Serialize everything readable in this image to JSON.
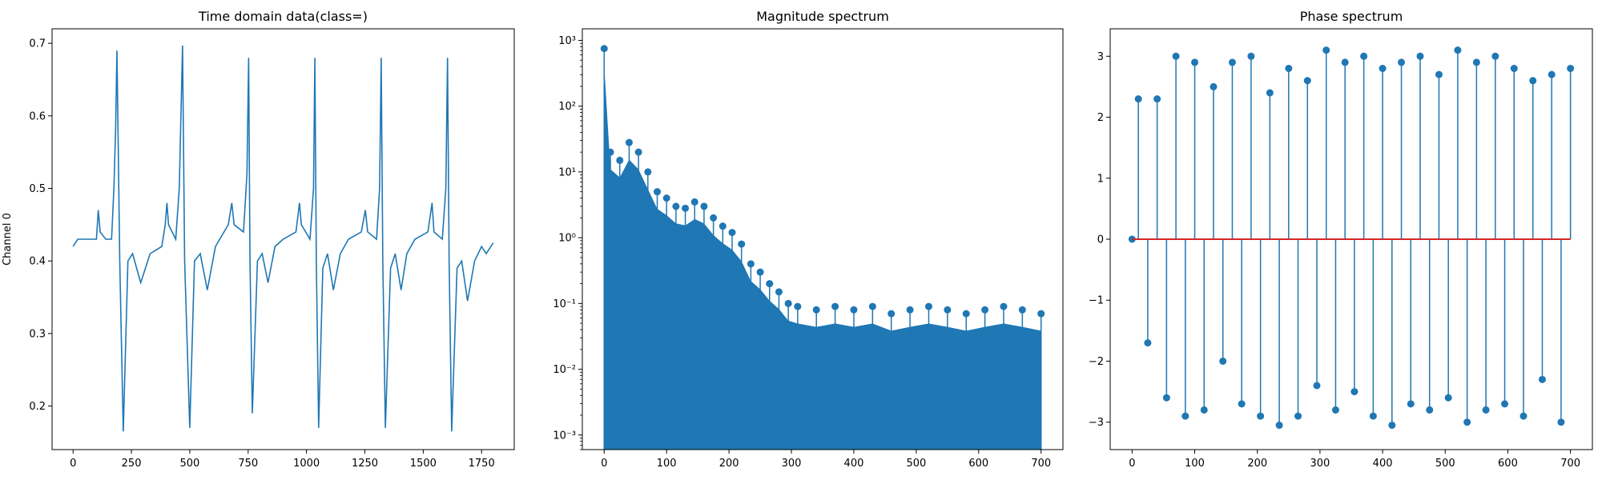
{
  "chart_data": [
    {
      "type": "line",
      "title": "Time domain data(class=)",
      "xlabel": "",
      "ylabel": "Channel 0",
      "xlim": [
        -90,
        1890
      ],
      "ylim": [
        0.14,
        0.72
      ],
      "xticks": [
        0,
        250,
        500,
        750,
        1000,
        1250,
        1500,
        1750
      ],
      "xtick_labels": [
        "0",
        "250",
        "500",
        "750",
        "1000",
        "1250",
        "1500",
        "1750"
      ],
      "yticks": [
        0.2,
        0.3,
        0.4,
        0.5,
        0.6,
        0.7
      ],
      "ytick_labels": [
        "0.2",
        "0.3",
        "0.4",
        "0.5",
        "0.6",
        "0.7"
      ],
      "grid": false,
      "color": "#1f77b4",
      "series": [
        {
          "x": [
            0,
            20,
            60,
            100,
            108,
            116,
            140,
            165,
            175,
            182,
            188,
            200,
            215,
            235,
            255,
            290,
            330,
            380,
            395,
            402,
            409,
            440,
            455,
            462,
            469,
            478,
            500,
            520,
            545,
            575,
            610,
            665,
            680,
            690,
            730,
            745,
            752,
            758,
            768,
            790,
            810,
            835,
            865,
            900,
            955,
            970,
            978,
            1015,
            1030,
            1036,
            1042,
            1052,
            1070,
            1090,
            1115,
            1145,
            1180,
            1235,
            1252,
            1262,
            1300,
            1313,
            1320,
            1327,
            1338,
            1360,
            1380,
            1405,
            1430,
            1465,
            1520,
            1538,
            1546,
            1582,
            1597,
            1604,
            1611,
            1622,
            1645,
            1665,
            1690,
            1720,
            1750,
            1770,
            1800
          ],
          "y": [
            0.42,
            0.43,
            0.43,
            0.43,
            0.47,
            0.44,
            0.43,
            0.43,
            0.5,
            0.58,
            0.69,
            0.4,
            0.165,
            0.4,
            0.41,
            0.37,
            0.41,
            0.42,
            0.45,
            0.48,
            0.45,
            0.43,
            0.5,
            0.6,
            0.697,
            0.4,
            0.17,
            0.4,
            0.41,
            0.36,
            0.42,
            0.45,
            0.48,
            0.45,
            0.44,
            0.52,
            0.68,
            0.4,
            0.19,
            0.4,
            0.41,
            0.37,
            0.42,
            0.43,
            0.44,
            0.48,
            0.45,
            0.43,
            0.5,
            0.68,
            0.4,
            0.17,
            0.39,
            0.41,
            0.36,
            0.41,
            0.43,
            0.44,
            0.47,
            0.44,
            0.43,
            0.5,
            0.68,
            0.4,
            0.17,
            0.39,
            0.41,
            0.36,
            0.41,
            0.43,
            0.44,
            0.48,
            0.44,
            0.43,
            0.5,
            0.68,
            0.4,
            0.165,
            0.39,
            0.4,
            0.345,
            0.4,
            0.42,
            0.41,
            0.425
          ]
        }
      ]
    },
    {
      "type": "stem",
      "title": "Magnitude spectrum",
      "xlabel": "",
      "ylabel": "",
      "yscale": "log",
      "xlim": [
        -35,
        735
      ],
      "ylim": [
        0.0006,
        1500
      ],
      "xticks": [
        0,
        100,
        200,
        300,
        400,
        500,
        600,
        700
      ],
      "xtick_labels": [
        "0",
        "100",
        "200",
        "300",
        "400",
        "500",
        "600",
        "700"
      ],
      "yticks": [
        0.001,
        0.01,
        0.1,
        1,
        10,
        100,
        1000
      ],
      "ytick_labels": [
        "10⁻³",
        "10⁻²",
        "10⁻¹",
        "10⁰",
        "10¹",
        "10²",
        "10³"
      ],
      "grid": false,
      "color": "#1f77b4",
      "series": [
        {
          "x": [
            0,
            10,
            25,
            40,
            55,
            70,
            85,
            100,
            115,
            130,
            145,
            160,
            175,
            190,
            205,
            220,
            235,
            250,
            265,
            280,
            295,
            310,
            340,
            370,
            400,
            430,
            460,
            490,
            520,
            550,
            580,
            610,
            640,
            670,
            700
          ],
          "y": [
            750,
            20,
            15,
            28,
            20,
            10,
            5,
            4,
            3,
            2.8,
            3.5,
            3,
            2,
            1.5,
            1.2,
            0.8,
            0.4,
            0.3,
            0.2,
            0.15,
            0.1,
            0.09,
            0.08,
            0.09,
            0.08,
            0.09,
            0.07,
            0.08,
            0.09,
            0.08,
            0.07,
            0.08,
            0.09,
            0.08,
            0.07
          ]
        }
      ]
    },
    {
      "type": "stem",
      "title": "Phase spectrum",
      "xlabel": "",
      "ylabel": "",
      "xlim": [
        -35,
        735
      ],
      "ylim": [
        -3.45,
        3.45
      ],
      "xticks": [
        0,
        100,
        200,
        300,
        400,
        500,
        600,
        700
      ],
      "xtick_labels": [
        "0",
        "100",
        "200",
        "300",
        "400",
        "500",
        "600",
        "700"
      ],
      "yticks": [
        -3,
        -2,
        -1,
        0,
        1,
        2,
        3
      ],
      "ytick_labels": [
        "−3",
        "−2",
        "−1",
        "0",
        "1",
        "2",
        "3"
      ],
      "grid": false,
      "color": "#1f77b4",
      "baseline_color": "#d62728",
      "series": [
        {
          "x": [
            0,
            10,
            25,
            40,
            55,
            70,
            85,
            100,
            115,
            130,
            145,
            160,
            175,
            190,
            205,
            220,
            235,
            250,
            265,
            280,
            295,
            310,
            325,
            340,
            355,
            370,
            385,
            400,
            415,
            430,
            445,
            460,
            475,
            490,
            505,
            520,
            535,
            550,
            565,
            580,
            595,
            610,
            625,
            640,
            655,
            670,
            685,
            700
          ],
          "y": [
            0,
            2.3,
            -1.7,
            2.3,
            -2.6,
            3.0,
            -2.9,
            2.9,
            -2.8,
            2.5,
            -2.0,
            2.9,
            -2.7,
            3.0,
            -2.9,
            2.4,
            -3.05,
            2.8,
            -2.9,
            2.6,
            -2.4,
            3.1,
            -2.8,
            2.9,
            -2.5,
            3.0,
            -2.9,
            2.8,
            -3.05,
            2.9,
            -2.7,
            3.0,
            -2.8,
            2.7,
            -2.6,
            3.1,
            -3.0,
            2.9,
            -2.8,
            3.0,
            -2.7,
            2.8,
            -2.9,
            2.6,
            -2.3,
            2.7,
            -3.0,
            2.8
          ]
        }
      ]
    }
  ]
}
